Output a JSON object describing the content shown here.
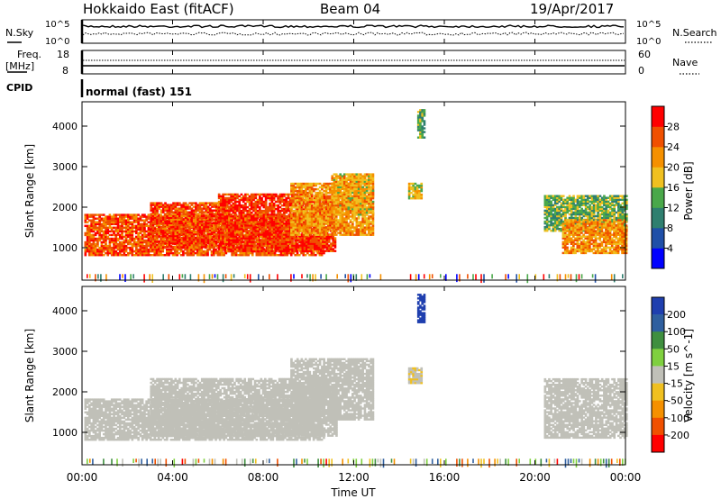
{
  "header": {
    "station": "Hokkaido East (fitACF)",
    "beam": "Beam 04",
    "date": "19/Apr/2017"
  },
  "noise_panel": {
    "left_label": "N.Sky",
    "right_label": "N.Search",
    "left_ticks": [
      "10^5",
      "10^0"
    ],
    "right_ticks": [
      "10^5",
      "10^0"
    ]
  },
  "freq_panel": {
    "left_label_line1": "Freq.",
    "left_label_line2": "[MHz]",
    "right_label": "Nave",
    "left_ticks": [
      "18",
      "8"
    ],
    "right_ticks": [
      "60",
      "0"
    ]
  },
  "cpid_panel": {
    "label": "CPID",
    "mode": "normal (fast) 151"
  },
  "colors": {
    "power_scale": [
      "#0000ff",
      "#1f4fa8",
      "#2f7f6f",
      "#4aa84a",
      "#f0c020",
      "#f59000",
      "#f05000",
      "#ff0000"
    ],
    "velocity_scale": [
      "#1f3faf",
      "#2f5f9f",
      "#3f8f3f",
      "#7fd03f",
      "#c0c0b8",
      "#f0c020",
      "#f59000",
      "#f05000",
      "#ff0000"
    ]
  },
  "chart_data": [
    {
      "type": "heatmap",
      "name": "power",
      "ylabel": "Slant Range [km]",
      "yticks": [
        "1000",
        "2000",
        "3000",
        "4000"
      ],
      "ylim": [
        200,
        4600
      ],
      "colorbar_label": "Power [dB]",
      "colorbar_ticks": [
        "4",
        "8",
        "12",
        "16",
        "20",
        "24",
        "28"
      ],
      "colorbar_range": [
        0,
        32
      ],
      "xlim": [
        0,
        24
      ],
      "xticks": [
        "00:00",
        "04:00",
        "08:00",
        "12:00",
        "16:00",
        "20:00",
        "00:00"
      ],
      "echo_regions": [
        {
          "t0": 0.1,
          "t1": 10.7,
          "r_lo": 800,
          "r_hi": 1800,
          "level": 26
        },
        {
          "t0": 3.0,
          "t1": 6.5,
          "r_lo": 1000,
          "r_hi": 2100,
          "level": 27
        },
        {
          "t0": 6.0,
          "t1": 11.2,
          "r_lo": 900,
          "r_hi": 2300,
          "level": 28
        },
        {
          "t0": 9.2,
          "t1": 12.8,
          "r_lo": 1300,
          "r_hi": 2600,
          "level": 22
        },
        {
          "t0": 11.0,
          "t1": 12.8,
          "r_lo": 1800,
          "r_hi": 2800,
          "level": 20
        },
        {
          "t0": 14.4,
          "t1": 15.0,
          "r_lo": 2200,
          "r_hi": 2600,
          "level": 18
        },
        {
          "t0": 14.8,
          "t1": 15.1,
          "r_lo": 3700,
          "r_hi": 4400,
          "level": 14
        },
        {
          "t0": 20.4,
          "t1": 24.0,
          "r_lo": 1400,
          "r_hi": 2300,
          "level": 14
        },
        {
          "t0": 21.2,
          "t1": 24.0,
          "r_lo": 850,
          "r_hi": 1700,
          "level": 22
        }
      ]
    },
    {
      "type": "heatmap",
      "name": "velocity",
      "ylabel": "Slant Range [km]",
      "yticks": [
        "1000",
        "2000",
        "3000",
        "4000"
      ],
      "ylim": [
        200,
        4600
      ],
      "colorbar_label": "Velocity [m s^-1]",
      "colorbar_ticks": [
        "200",
        "100",
        "50",
        "15",
        "-15",
        "-50",
        "-100",
        "-200"
      ],
      "colorbar_range": [
        -250,
        250
      ],
      "xlim": [
        0,
        24
      ],
      "xticks": [
        "00:00",
        "04:00",
        "08:00",
        "12:00",
        "16:00",
        "20:00",
        "00:00"
      ],
      "xlabel": "Time UT",
      "echo_regions": [
        {
          "t0": 0.1,
          "t1": 10.7,
          "r_lo": 800,
          "r_hi": 1800,
          "level": 0
        },
        {
          "t0": 3.0,
          "t1": 11.2,
          "r_lo": 900,
          "r_hi": 2300,
          "level": 0
        },
        {
          "t0": 9.2,
          "t1": 12.8,
          "r_lo": 1300,
          "r_hi": 2800,
          "level": 0
        },
        {
          "t0": 14.4,
          "t1": 15.0,
          "r_lo": 2200,
          "r_hi": 2600,
          "level": -20
        },
        {
          "t0": 14.8,
          "t1": 15.1,
          "r_lo": 3700,
          "r_hi": 4400,
          "level": 220
        },
        {
          "t0": 20.4,
          "t1": 24.0,
          "r_lo": 850,
          "r_hi": 2300,
          "level": 0
        }
      ]
    }
  ]
}
